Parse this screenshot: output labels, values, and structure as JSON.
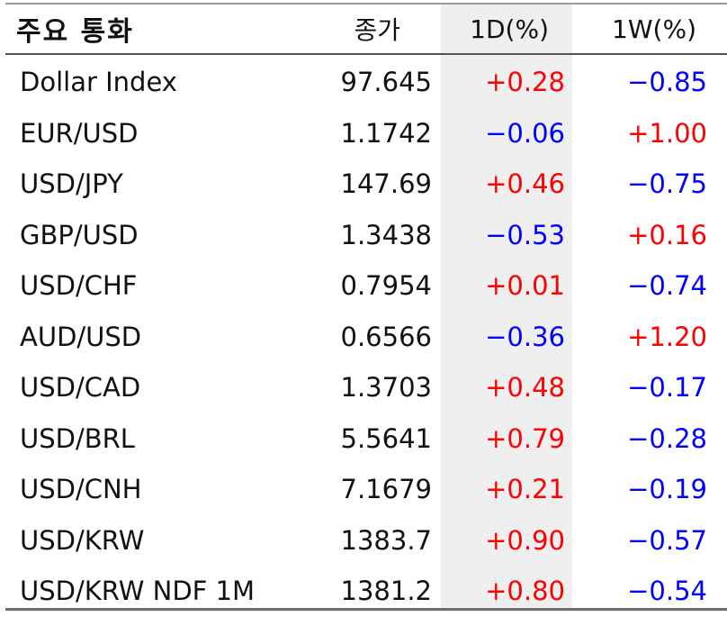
{
  "colors": {
    "positive": "#ff0000",
    "negative": "#0000ff",
    "shade": "#efefef"
  },
  "header": {
    "name": "주요 통화",
    "close": "종가",
    "d1": "1D(%)",
    "w1": "1W(%)"
  },
  "rows": [
    {
      "name": "Dollar Index",
      "close": "97.645",
      "d1": "+0.28",
      "w1": "−0.85"
    },
    {
      "name": "EUR/USD",
      "close": "1.1742",
      "d1": "−0.06",
      "w1": "+1.00"
    },
    {
      "name": "USD/JPY",
      "close": "147.69",
      "d1": "+0.46",
      "w1": "−0.75"
    },
    {
      "name": "GBP/USD",
      "close": "1.3438",
      "d1": "−0.53",
      "w1": "+0.16"
    },
    {
      "name": "USD/CHF",
      "close": "0.7954",
      "d1": "+0.01",
      "w1": "−0.74"
    },
    {
      "name": "AUD/USD",
      "close": "0.6566",
      "d1": "−0.36",
      "w1": "+1.20"
    },
    {
      "name": "USD/CAD",
      "close": "1.3703",
      "d1": "+0.48",
      "w1": "−0.17"
    },
    {
      "name": "USD/BRL",
      "close": "5.5641",
      "d1": "+0.79",
      "w1": "−0.28"
    },
    {
      "name": "USD/CNH",
      "close": "7.1679",
      "d1": "+0.21",
      "w1": "−0.19"
    },
    {
      "name": "USD/KRW",
      "close": "1383.7",
      "d1": "+0.90",
      "w1": "−0.57"
    },
    {
      "name": "USD/KRW NDF 1M",
      "close": "1381.2",
      "d1": "+0.80",
      "w1": "−0.54"
    }
  ]
}
